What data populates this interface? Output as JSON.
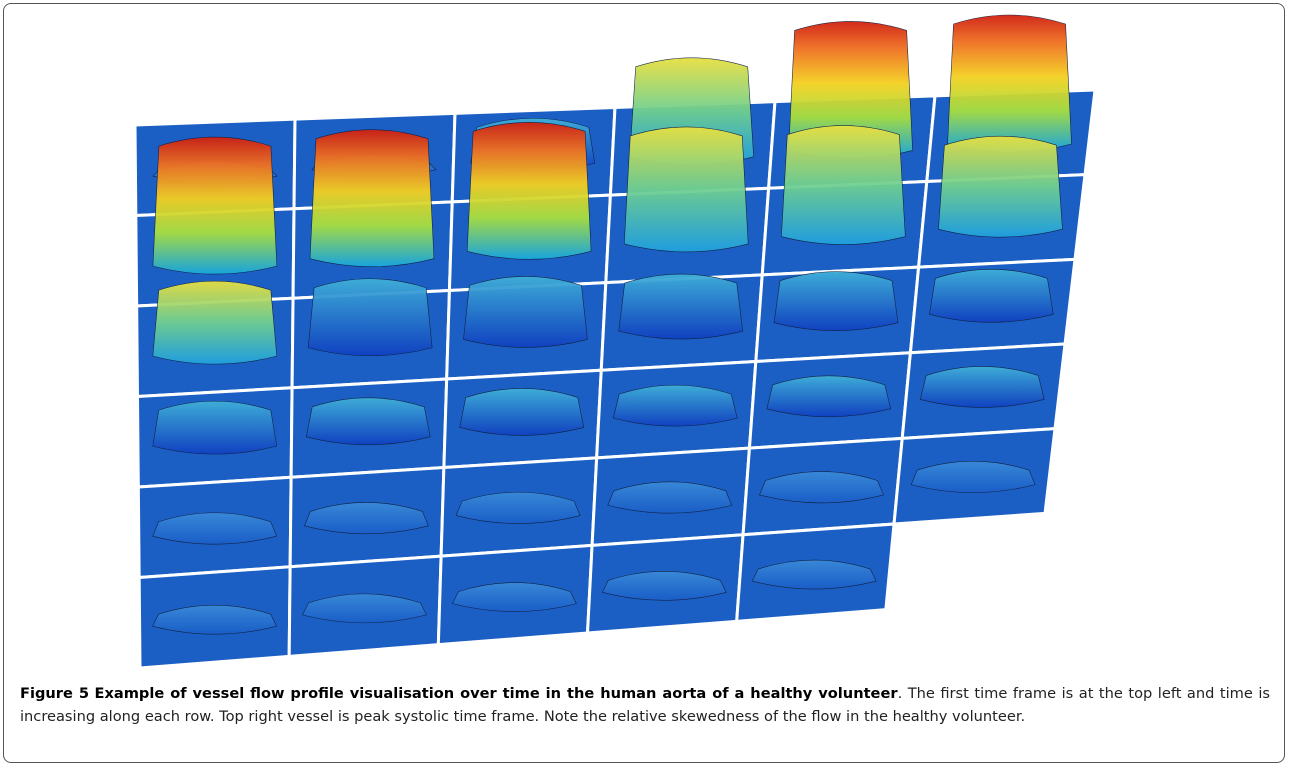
{
  "figure": {
    "label": "Figure 5",
    "title": "Example of vessel flow profile visualisation over time in the human aorta of a healthy volunteer",
    "caption": ". The first time frame is at the top left and time is increasing along each row. Top right vessel is peak systolic time frame. Note the relative skewedness of the flow in the healthy volunteer."
  }
}
